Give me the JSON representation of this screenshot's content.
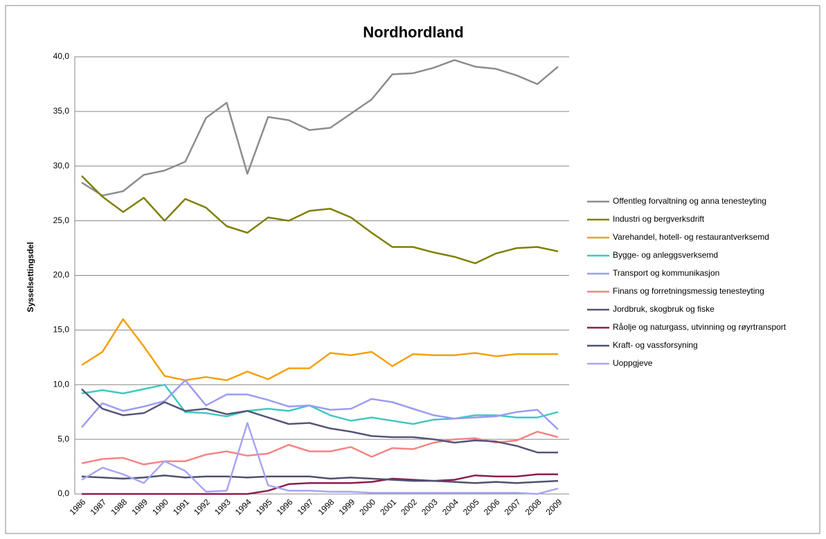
{
  "chart_data": {
    "type": "line",
    "title": "Nordhordland",
    "y_label": "Sysselsettingsdel",
    "categories": [
      "1986",
      "1987",
      "1988",
      "1989",
      "1990",
      "1991",
      "1992",
      "1993",
      "1994",
      "1995",
      "1996",
      "1997",
      "1998",
      "1999",
      "2000",
      "2001",
      "2002",
      "2003",
      "2004",
      "2005",
      "2006",
      "2007",
      "2008",
      "2009"
    ],
    "ylim": [
      0,
      40
    ],
    "yticks": [
      {
        "value": 0,
        "label": "0,0"
      },
      {
        "value": 5,
        "label": "5,0"
      },
      {
        "value": 10,
        "label": "10,0"
      },
      {
        "value": 15,
        "label": "15,0"
      },
      {
        "value": 20,
        "label": "20,0"
      },
      {
        "value": 25,
        "label": "25,0"
      },
      {
        "value": 30,
        "label": "30,0"
      },
      {
        "value": 35,
        "label": "35,0"
      },
      {
        "value": 40,
        "label": "40,0"
      }
    ],
    "grid": true,
    "legend": "right",
    "series": [
      {
        "name": "Offentleg forvaltning og anna tenesteyting",
        "color": "#8c8c8c",
        "values": [
          28.5,
          27.3,
          27.7,
          29.2,
          29.6,
          30.4,
          34.4,
          35.8,
          29.3,
          34.5,
          34.2,
          33.3,
          33.5,
          34.8,
          36.1,
          38.4,
          38.5,
          39.0,
          39.7,
          39.1,
          38.9,
          38.3,
          37.5,
          39.1
        ]
      },
      {
        "name": "Industri og bergverksdrift",
        "color": "#7f7f00",
        "values": [
          29.1,
          27.2,
          25.8,
          27.1,
          25.0,
          27.0,
          26.2,
          24.5,
          23.9,
          25.3,
          25.0,
          25.9,
          26.1,
          25.3,
          23.9,
          22.6,
          22.6,
          22.1,
          21.7,
          21.1,
          22.0,
          22.5,
          22.6,
          22.2
        ]
      },
      {
        "name": "Varehandel, hotell- og restaurantverksemd",
        "color": "#f5a00a",
        "values": [
          11.8,
          13.0,
          16.0,
          13.5,
          10.8,
          10.4,
          10.7,
          10.4,
          11.2,
          10.5,
          11.5,
          11.5,
          12.9,
          12.7,
          13.0,
          11.7,
          12.8,
          12.7,
          12.7,
          12.9,
          12.6,
          12.8,
          12.8,
          12.8
        ]
      },
      {
        "name": "Bygge- og anleggsverksemd",
        "color": "#3fc8c0",
        "values": [
          9.2,
          9.5,
          9.2,
          9.6,
          10.0,
          7.5,
          7.4,
          7.1,
          7.6,
          7.8,
          7.6,
          8.1,
          7.2,
          6.7,
          7.0,
          6.7,
          6.4,
          6.8,
          6.9,
          7.2,
          7.2,
          7.0,
          7.0,
          7.5
        ]
      },
      {
        "name": "Transport og kommunikasjon",
        "color": "#9b9bf5",
        "values": [
          6.1,
          8.3,
          7.6,
          8.0,
          8.5,
          10.4,
          8.1,
          9.1,
          9.1,
          8.6,
          8.0,
          8.1,
          7.7,
          7.8,
          8.7,
          8.4,
          7.8,
          7.2,
          6.9,
          7.0,
          7.1,
          7.5,
          7.7,
          5.9
        ]
      },
      {
        "name": "Finans og forretningsmessig tenesteyting",
        "color": "#f48484",
        "values": [
          2.8,
          3.2,
          3.3,
          2.7,
          3.0,
          3.0,
          3.6,
          3.9,
          3.5,
          3.7,
          4.5,
          3.9,
          3.9,
          4.3,
          3.4,
          4.2,
          4.1,
          4.7,
          5.0,
          5.1,
          4.7,
          4.9,
          5.7,
          5.2
        ]
      },
      {
        "name": "Jordbruk, skogbruk og fiske",
        "color": "#555577",
        "values": [
          9.6,
          7.8,
          7.2,
          7.4,
          8.4,
          7.6,
          7.8,
          7.3,
          7.6,
          7.0,
          6.4,
          6.5,
          6.0,
          5.7,
          5.3,
          5.2,
          5.2,
          5.0,
          4.7,
          4.9,
          4.8,
          4.4,
          3.8,
          3.8
        ]
      },
      {
        "name": "Råolje og naturgass, utvinning og røyrtransport",
        "color": "#8b1f4f",
        "values": [
          0,
          0,
          0,
          0,
          0,
          0,
          0,
          0,
          0,
          0.3,
          0.9,
          1.0,
          1.0,
          1.0,
          1.1,
          1.4,
          1.3,
          1.2,
          1.3,
          1.7,
          1.6,
          1.6,
          1.8,
          1.8
        ]
      },
      {
        "name": "Kraft- og vassforsyning",
        "color": "#4f5070",
        "values": [
          1.6,
          1.5,
          1.4,
          1.5,
          1.7,
          1.5,
          1.6,
          1.6,
          1.5,
          1.6,
          1.6,
          1.6,
          1.4,
          1.5,
          1.4,
          1.3,
          1.2,
          1.2,
          1.1,
          1.0,
          1.1,
          1.0,
          1.1,
          1.2
        ]
      },
      {
        "name": "Uoppgjeve",
        "color": "#a6a6f2",
        "values": [
          1.3,
          2.4,
          1.8,
          1.0,
          3.0,
          2.1,
          0.2,
          0.3,
          6.5,
          0.8,
          0.3,
          0.3,
          0.2,
          0.2,
          0.1,
          0.1,
          0.1,
          0.1,
          0.1,
          0.1,
          0.1,
          0.1,
          0.0,
          0.5
        ]
      }
    ]
  }
}
